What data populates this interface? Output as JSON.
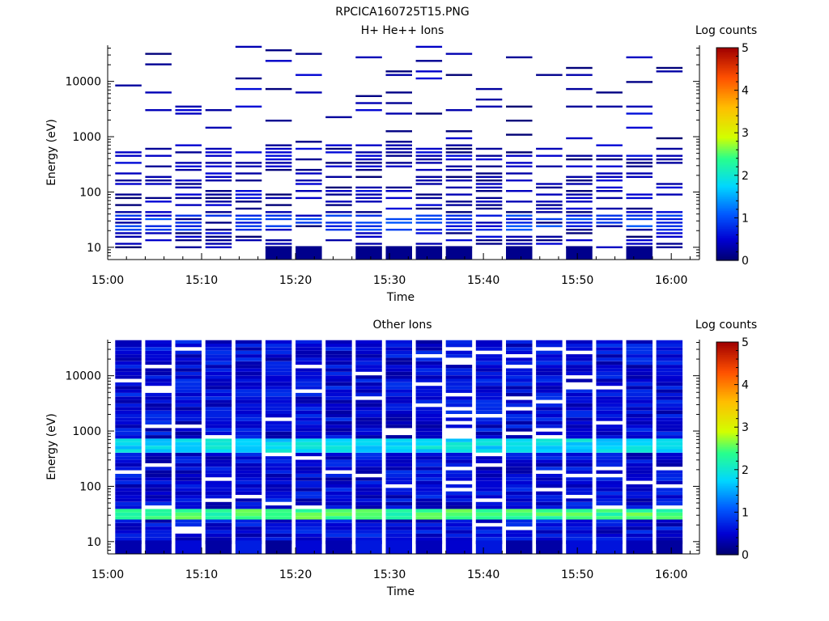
{
  "figure_title": "RPCICA160725T15.PNG",
  "chart_data": [
    {
      "type": "heatmap",
      "title": "H+ He++ Ions",
      "xlabel": "Time",
      "ylabel": "Energy (eV)",
      "y_scale": "log",
      "ylim": [
        6,
        45000
      ],
      "xlim": [
        "15:00",
        "16:03"
      ],
      "x_ticks": [
        "15:00",
        "15:10",
        "15:20",
        "15:30",
        "15:40",
        "15:50",
        "16:00"
      ],
      "y_ticks": [
        "10",
        "100",
        "1000",
        "10000"
      ],
      "colorbar": {
        "label": "Log counts",
        "range": [
          0,
          5
        ],
        "ticks": [
          "0",
          "1",
          "2",
          "3",
          "4",
          "5"
        ]
      },
      "time_bins_minutes": [
        0.8,
        4.0,
        7.2,
        10.4,
        13.6,
        16.8,
        20.0,
        23.2,
        26.4,
        29.6,
        32.8,
        36.0,
        39.2,
        42.4,
        45.6,
        48.8,
        52.0,
        55.2,
        58.4,
        61.6
      ],
      "sparse": true,
      "background": "white (no counts)",
      "typical_log_counts": [
        0,
        0.8
      ],
      "peak_region": {
        "energy_eV": [
          20,
          40
        ],
        "log_counts": 1.0
      }
    },
    {
      "type": "heatmap",
      "title": "Other Ions",
      "xlabel": "Time",
      "ylabel": "Energy (eV)",
      "y_scale": "log",
      "ylim": [
        6,
        45000
      ],
      "xlim": [
        "15:00",
        "16:03"
      ],
      "x_ticks": [
        "15:00",
        "15:10",
        "15:20",
        "15:30",
        "15:40",
        "15:50",
        "16:00"
      ],
      "y_ticks": [
        "10",
        "100",
        "1000",
        "10000"
      ],
      "colorbar": {
        "label": "Log counts",
        "range": [
          0,
          5
        ],
        "ticks": [
          "0",
          "1",
          "2",
          "3",
          "4",
          "5"
        ]
      },
      "time_bins_minutes": [
        0.8,
        4.0,
        7.2,
        10.4,
        13.6,
        16.8,
        20.0,
        23.2,
        26.4,
        29.6,
        32.8,
        36.0,
        39.2,
        42.4,
        45.6,
        48.8,
        52.0,
        55.2,
        58.4,
        61.6
      ],
      "sparse": false,
      "bands": [
        {
          "energy_eV": [
            380,
            700
          ],
          "log_counts": 1.8
        },
        {
          "energy_eV": [
            25,
            40
          ],
          "log_counts": 2.4
        }
      ],
      "typical_log_counts": [
        0.3,
        0.8
      ]
    }
  ]
}
